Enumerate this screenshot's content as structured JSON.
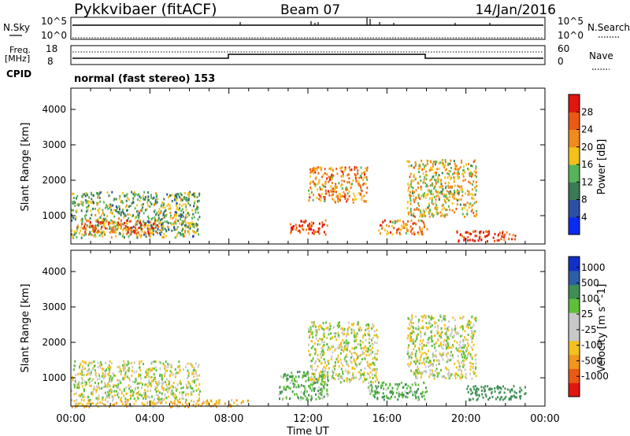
{
  "header": {
    "station": "Pykkvibaer (fitACF)",
    "beam": "Beam 07",
    "date": "14/Jan/2016"
  },
  "status_panels": {
    "nsky_label": "N.Sky",
    "nsky_top": "10^5",
    "nsky_bottom": "10^0",
    "nsearch_label": "N.Search",
    "nsearch_top": "10^5",
    "nsearch_bottom": "10^0",
    "freq_label": "Freq.",
    "freq_unit": "[MHz]",
    "freq_top": "18",
    "freq_bottom": "8",
    "nave_label": "Nave",
    "nave_top": "60",
    "nave_bottom": "0",
    "cpid_label": "CPID",
    "cpid_value": "normal (fast stereo) 153"
  },
  "colors": {
    "power_scale": [
      "#0b2bf0",
      "#2d4fa6",
      "#3a7a55",
      "#57b35a",
      "#f2c21a",
      "#f08a1c",
      "#ea5a14",
      "#e0160f"
    ],
    "velocity_scale": [
      "#e0160f",
      "#ea5a14",
      "#f0951d",
      "#f2c11d",
      "#c8c8c8",
      "#c8c8c8",
      "#5fbf3a",
      "#3f8f55",
      "#2d5ea6",
      "#1230c8"
    ]
  },
  "chart_data": [
    {
      "type": "heatmap",
      "name": "power",
      "ylabel": "Slant Range [km]",
      "xlabel": "",
      "y_ticks": [
        "1000",
        "2000",
        "3000",
        "4000"
      ],
      "x_ticks": [
        "00:00",
        "04:00",
        "08:00",
        "12:00",
        "16:00",
        "20:00",
        "00:00"
      ],
      "ylim": [
        200,
        4600
      ],
      "xlim_hours": [
        0,
        24
      ],
      "colorbar": {
        "label": "Power [dB]",
        "ticks": [
          "4",
          "8",
          "12",
          "16",
          "20",
          "24",
          "28"
        ],
        "range": [
          0,
          32
        ]
      },
      "echo_regions": [
        {
          "t0": 0.0,
          "t1": 6.5,
          "r0": 400,
          "r1": 1700,
          "level": 14
        },
        {
          "t0": 0.5,
          "t1": 4.5,
          "r0": 500,
          "r1": 900,
          "level": 24
        },
        {
          "t0": 11.0,
          "t1": 13.0,
          "r0": 500,
          "r1": 900,
          "level": 28
        },
        {
          "t0": 12.0,
          "t1": 15.0,
          "r0": 1400,
          "r1": 2400,
          "level": 22
        },
        {
          "t0": 15.5,
          "t1": 18.0,
          "r0": 500,
          "r1": 900,
          "level": 22
        },
        {
          "t0": 17.0,
          "t1": 20.5,
          "r0": 1000,
          "r1": 2600,
          "level": 18
        },
        {
          "t0": 19.5,
          "t1": 22.5,
          "r0": 300,
          "r1": 600,
          "level": 28
        }
      ]
    },
    {
      "type": "heatmap",
      "name": "velocity",
      "ylabel": "Slant Range [km]",
      "xlabel": "Time UT",
      "y_ticks": [
        "1000",
        "2000",
        "3000",
        "4000"
      ],
      "x_ticks": [
        "00:00",
        "04:00",
        "08:00",
        "12:00",
        "16:00",
        "20:00",
        "00:00"
      ],
      "ylim": [
        200,
        4600
      ],
      "xlim_hours": [
        0,
        24
      ],
      "colorbar": {
        "label": "Velocity [m s^-1]",
        "ticks": [
          "1000",
          "500",
          "100",
          "25",
          "-25",
          "-100",
          "-500",
          "-1000"
        ],
        "range": [
          -1000,
          1000
        ]
      },
      "echo_regions": [
        {
          "t0": 0.0,
          "t1": 6.5,
          "r0": 400,
          "r1": 1500,
          "level": 0
        },
        {
          "t0": 0.0,
          "t1": 9.0,
          "r0": 200,
          "r1": 400,
          "level": -80
        },
        {
          "t0": 10.5,
          "t1": 13.0,
          "r0": 400,
          "r1": 1200,
          "level": 80
        },
        {
          "t0": 12.0,
          "t1": 15.5,
          "r0": 900,
          "r1": 2600,
          "level": 0
        },
        {
          "t0": 15.0,
          "t1": 18.0,
          "r0": 400,
          "r1": 900,
          "level": 80
        },
        {
          "t0": 17.0,
          "t1": 20.5,
          "r0": 1000,
          "r1": 2800,
          "level": 0
        },
        {
          "t0": 20.0,
          "t1": 23.0,
          "r0": 400,
          "r1": 800,
          "level": 300
        }
      ]
    }
  ]
}
